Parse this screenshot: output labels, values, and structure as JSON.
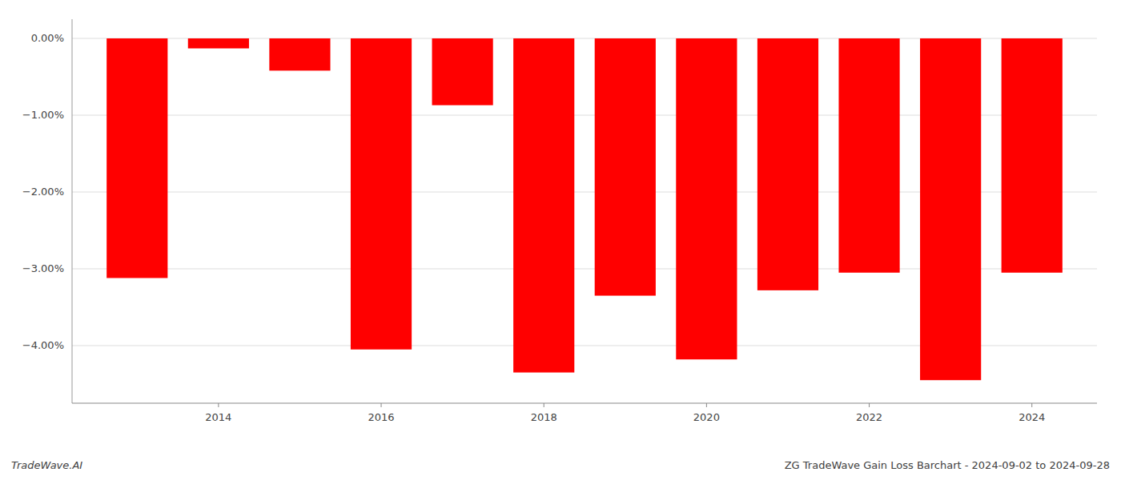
{
  "chart_data": {
    "type": "bar",
    "title": "ZG TradeWave Gain Loss Barchart - 2024-09-02 to 2024-09-28",
    "annotations": [
      "TradeWave.AI"
    ],
    "x": [
      2013,
      2014,
      2015,
      2016,
      2017,
      2018,
      2019,
      2020,
      2021,
      2022,
      2023,
      2024
    ],
    "values": [
      -3.12,
      -0.13,
      -0.42,
      -4.05,
      -0.87,
      -4.35,
      -3.35,
      -4.18,
      -3.28,
      -3.05,
      -4.45,
      -3.05
    ],
    "color": "#ff0000",
    "xlim": [
      2012.2,
      2024.8
    ],
    "xticks": [
      2014,
      2016,
      2018,
      2020,
      2022,
      2024
    ],
    "ylim": [
      -4.75,
      0.25
    ],
    "yticks": [
      {
        "value": 0,
        "label": "0.00%"
      },
      {
        "value": -1.0,
        "label": "−1.00%"
      },
      {
        "value": -2.0,
        "label": "−2.00%"
      },
      {
        "value": -3.0,
        "label": "−3.00%"
      },
      {
        "value": -4.0,
        "label": "−4.00%"
      }
    ],
    "grid": true
  }
}
